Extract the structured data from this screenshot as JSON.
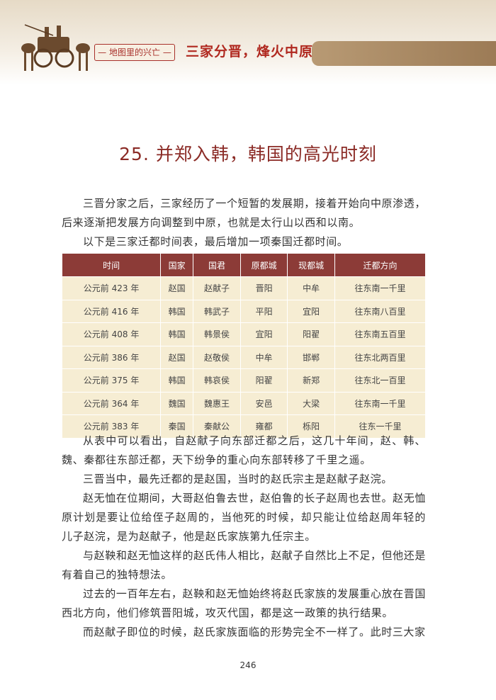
{
  "header": {
    "series_label": "地图里的兴亡",
    "section_title": "三家分晋，烽火中原"
  },
  "chapter_title": "25. 并郑入韩，韩国的高光时刻",
  "paragraphs_before": [
    "三晋分家之后，三家经历了一个短暂的发展期，接着开始向中原渗透，后来逐渐把发展方向调整到中原，也就是太行山以西和以南。",
    "以下是三家迁都时间表，最后增加一项秦国迁都时间。"
  ],
  "table": {
    "columns": [
      "时间",
      "国家",
      "国君",
      "原都城",
      "现都城",
      "迁都方向"
    ],
    "rows": [
      [
        "公元前 423 年",
        "赵国",
        "赵献子",
        "晋阳",
        "中牟",
        "往东南一千里"
      ],
      [
        "公元前 416 年",
        "韩国",
        "韩武子",
        "平阳",
        "宜阳",
        "往东南八百里"
      ],
      [
        "公元前 408 年",
        "韩国",
        "韩景侯",
        "宜阳",
        "阳翟",
        "往东南五百里"
      ],
      [
        "公元前 386 年",
        "赵国",
        "赵敬侯",
        "中牟",
        "邯郸",
        "往东北两百里"
      ],
      [
        "公元前 375 年",
        "韩国",
        "韩哀侯",
        "阳翟",
        "新郑",
        "往东北一百里"
      ],
      [
        "公元前 364 年",
        "魏国",
        "魏惠王",
        "安邑",
        "大梁",
        "往东南一千里"
      ],
      [
        "公元前 383 年",
        "秦国",
        "秦献公",
        "雍都",
        "栎阳",
        "往东一千里"
      ]
    ]
  },
  "paragraphs_after": [
    "从表中可以看出，自赵献子向东部迁都之后，这几十年间，赵、韩、魏、秦都往东部迁都，天下纷争的重心向东部转移了千里之遥。",
    "三晋当中，最先迁都的是赵国，当时的赵氏宗主是赵献子赵浣。",
    "赵无恤在位期间，大哥赵伯鲁去世，赵伯鲁的长子赵周也去世。赵无恤原计划是要让位给侄子赵周的，当他死的时候，却只能让位给赵周年轻的儿子赵浣，是为赵献子，他是赵氏家族第九任宗主。",
    "与赵鞅和赵无恤这样的赵氏伟人相比，赵献子自然比上不足，但他还是有着自己的独特想法。",
    "过去的一百年左右，赵鞅和赵无恤始终将赵氏家族的发展重心放在晋国西北方向，他们修筑晋阳城，攻灭代国，都是这一政策的执行结果。",
    "而赵献子即位的时候，赵氏家族面临的形势完全不一样了。此时三大家"
  ],
  "page_number": "246"
}
